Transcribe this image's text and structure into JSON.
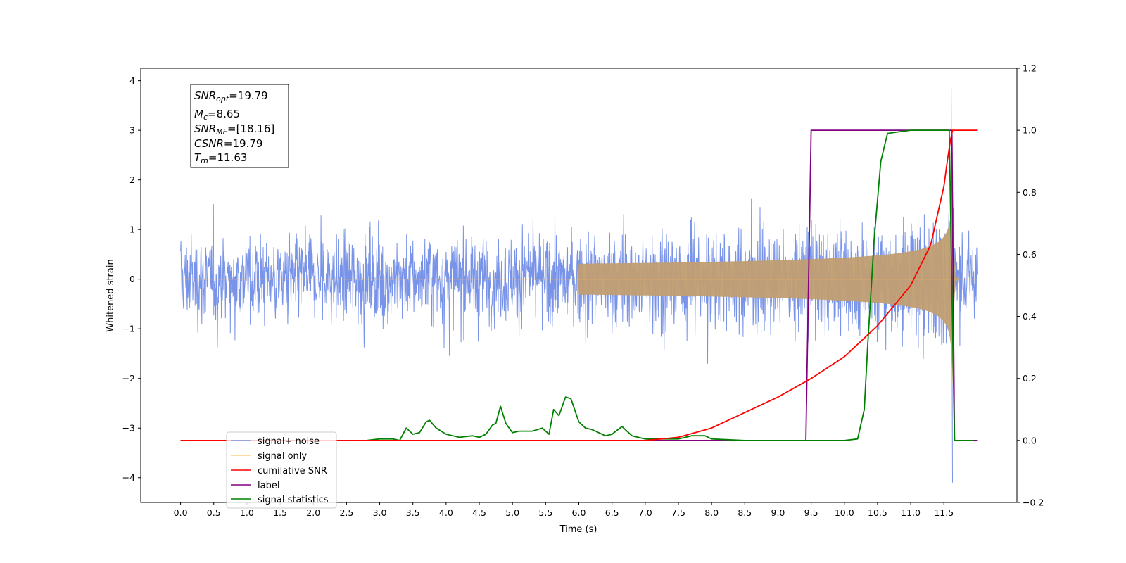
{
  "chart_data": {
    "type": "line",
    "xlabel": "Time (s)",
    "ylabel": "Whitened strain",
    "ylabel_right": "",
    "xlim": [
      -0.6,
      12.6
    ],
    "ylim": [
      -4.5,
      4.25
    ],
    "ylim_right": [
      -0.2,
      1.2
    ],
    "xticks": [
      "0.0",
      "0.5",
      "1.0",
      "1.5",
      "2.0",
      "2.5",
      "3.0",
      "3.5",
      "4.0",
      "4.5",
      "5.0",
      "5.5",
      "6.0",
      "6.5",
      "7.0",
      "7.5",
      "8.0",
      "8.5",
      "9.0",
      "9.5",
      "10.0",
      "10.5",
      "11.0",
      "11.5"
    ],
    "yticks_left": [
      "4",
      "3",
      "2",
      "1",
      "0",
      "−1",
      "−2",
      "−3",
      "−4"
    ],
    "yticks_right": [
      "1.2",
      "1.0",
      "0.8",
      "0.6",
      "0.4",
      "0.2",
      "0.0",
      "−0.2"
    ],
    "legend_position": "lower-left",
    "legend_entries": [
      "signal+ noise",
      "signal only",
      "cumilative SNR",
      "label",
      "signal statistics"
    ],
    "colors": {
      "signal_noise": "#7893e8",
      "signal_only": "#ffb84d",
      "signal_fill": "#c19e72",
      "cumulative_snr": "#ff0000",
      "label": "#800080",
      "signal_statistics": "#008000"
    },
    "annotation": {
      "snr_opt_base": "SNR",
      "snr_opt_sub": "opt",
      "snr_opt_val": "=19.79",
      "mc_base": "M",
      "mc_sub": "c",
      "mc_val": "=8.65",
      "snr_mf_base": "SNR",
      "snr_mf_sub": "MF",
      "snr_mf_val": "=[18.16]",
      "csnr_base": "CSNR",
      "csnr_val": "=19.79",
      "tm_base": "T",
      "tm_sub": "m",
      "tm_val": "=11.63"
    },
    "series": [
      {
        "name": "cumilative SNR",
        "axis": "right",
        "points": [
          [
            0,
            0
          ],
          [
            7.0,
            0.0
          ],
          [
            7.5,
            0.01
          ],
          [
            8.0,
            0.04
          ],
          [
            8.5,
            0.09
          ],
          [
            9.0,
            0.14
          ],
          [
            9.5,
            0.2
          ],
          [
            10.0,
            0.27
          ],
          [
            10.5,
            0.37
          ],
          [
            11.0,
            0.5
          ],
          [
            11.3,
            0.63
          ],
          [
            11.5,
            0.82
          ],
          [
            11.55,
            0.9
          ],
          [
            11.6,
            0.97
          ],
          [
            11.63,
            1.0
          ],
          [
            12.0,
            1.0
          ]
        ]
      },
      {
        "name": "label",
        "axis": "right",
        "points": [
          [
            0,
            0
          ],
          [
            9.42,
            0
          ],
          [
            9.5,
            1.0
          ],
          [
            11.62,
            1.0
          ],
          [
            11.66,
            0
          ],
          [
            12.0,
            0
          ]
        ]
      },
      {
        "name": "signal statistics",
        "axis": "right",
        "points": [
          [
            0,
            0
          ],
          [
            2.5,
            0
          ],
          [
            2.8,
            0.0
          ],
          [
            3.0,
            0.005
          ],
          [
            3.2,
            0.005
          ],
          [
            3.3,
            0.0
          ],
          [
            3.4,
            0.04
          ],
          [
            3.5,
            0.02
          ],
          [
            3.6,
            0.025
          ],
          [
            3.7,
            0.06
          ],
          [
            3.75,
            0.065
          ],
          [
            3.85,
            0.04
          ],
          [
            4.0,
            0.02
          ],
          [
            4.2,
            0.01
          ],
          [
            4.4,
            0.015
          ],
          [
            4.5,
            0.01
          ],
          [
            4.6,
            0.02
          ],
          [
            4.7,
            0.05
          ],
          [
            4.75,
            0.055
          ],
          [
            4.82,
            0.11
          ],
          [
            4.9,
            0.055
          ],
          [
            5.0,
            0.025
          ],
          [
            5.1,
            0.03
          ],
          [
            5.3,
            0.03
          ],
          [
            5.45,
            0.04
          ],
          [
            5.55,
            0.02
          ],
          [
            5.62,
            0.1
          ],
          [
            5.7,
            0.08
          ],
          [
            5.8,
            0.14
          ],
          [
            5.88,
            0.135
          ],
          [
            6.0,
            0.06
          ],
          [
            6.1,
            0.04
          ],
          [
            6.2,
            0.035
          ],
          [
            6.4,
            0.015
          ],
          [
            6.5,
            0.02
          ],
          [
            6.65,
            0.045
          ],
          [
            6.8,
            0.015
          ],
          [
            7.0,
            0.005
          ],
          [
            7.5,
            0.005
          ],
          [
            7.7,
            0.015
          ],
          [
            7.9,
            0.015
          ],
          [
            8.0,
            0.005
          ],
          [
            8.5,
            0
          ],
          [
            10.0,
            0
          ],
          [
            10.2,
            0.005
          ],
          [
            10.3,
            0.1
          ],
          [
            10.35,
            0.3
          ],
          [
            10.45,
            0.65
          ],
          [
            10.55,
            0.9
          ],
          [
            10.65,
            0.99
          ],
          [
            11.0,
            1.0
          ],
          [
            11.58,
            1.0
          ],
          [
            11.66,
            0
          ],
          [
            11.95,
            0
          ]
        ]
      }
    ],
    "noise_series": {
      "name": "signal+ noise",
      "axis": "left",
      "x_range": [
        0,
        12.0
      ],
      "typical_amplitude": 1.7,
      "max_value": 3.85,
      "min_value": -4.1
    },
    "chirp_series": {
      "name": "signal only",
      "axis": "left",
      "x_range": [
        0,
        12.0
      ],
      "merger_time": 11.63,
      "peak_amplitude": 2.2
    }
  }
}
